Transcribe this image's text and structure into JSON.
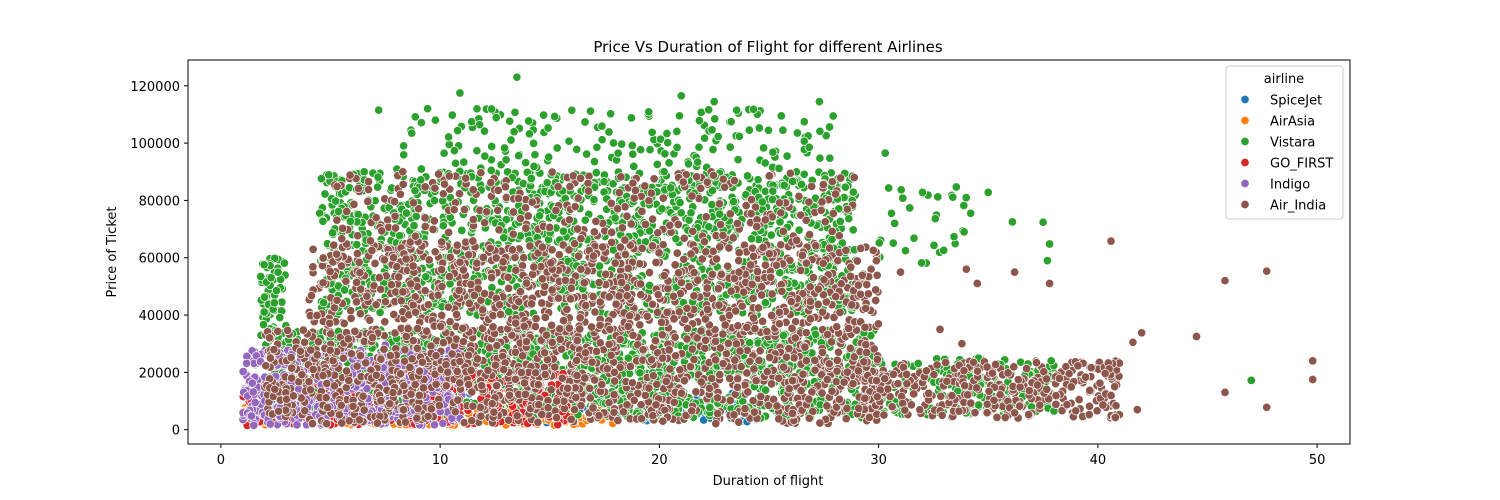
{
  "chart_data": {
    "type": "scatter",
    "title": "Price Vs Duration of Flight for different Airlines",
    "xlabel": "Duration of flight",
    "ylabel": "Price of Ticket",
    "xlim": [
      -1.5,
      51.5
    ],
    "ylim": [
      -5000,
      129000
    ],
    "xticks": [
      0,
      10,
      20,
      30,
      40,
      50
    ],
    "yticks": [
      0,
      20000,
      40000,
      60000,
      80000,
      100000,
      120000
    ],
    "grid": false,
    "legend": {
      "title": "airline",
      "placement": "top-right"
    },
    "series": [
      {
        "name": "SpiceJet",
        "color": "#1f77b4",
        "clusters": [
          {
            "x": [
              1.0,
              24.0
            ],
            "y": [
              1800,
              13000
            ],
            "n": 180
          },
          {
            "x": [
              2.0,
              16.0
            ],
            "y": [
              3000,
              20000
            ],
            "n": 60
          }
        ],
        "points": [
          [
            2.5,
            14000
          ],
          [
            3.5,
            12000
          ],
          [
            14.5,
            20500
          ],
          [
            24.0,
            2800
          ],
          [
            24.0,
            8000
          ],
          [
            4.2,
            18000
          ]
        ]
      },
      {
        "name": "AirAsia",
        "color": "#ff7f0e",
        "clusters": [
          {
            "x": [
              1.0,
              18.0
            ],
            "y": [
              1500,
              8000
            ],
            "n": 200
          },
          {
            "x": [
              2.0,
              14.0
            ],
            "y": [
              8000,
              20000
            ],
            "n": 50
          }
        ],
        "points": [
          [
            1.5,
            3800
          ],
          [
            2.5,
            12000
          ],
          [
            3.5,
            17500
          ],
          [
            9.5,
            1800
          ],
          [
            10.5,
            1800
          ],
          [
            11.5,
            24500
          ],
          [
            14.5,
            4500
          ]
        ]
      },
      {
        "name": "Vistara",
        "color": "#2ca02c",
        "clusters": [
          {
            "x": [
              4.5,
              29.0
            ],
            "y": [
              40000,
              90000
            ],
            "n": 1500
          },
          {
            "x": [
              1.8,
              3.0
            ],
            "y": [
              30000,
              60000
            ],
            "n": 70
          },
          {
            "x": [
              2.0,
              30.0
            ],
            "y": [
              4000,
              35000
            ],
            "n": 1400
          },
          {
            "x": [
              8.0,
              28.0
            ],
            "y": [
              90000,
              112000
            ],
            "n": 170
          },
          {
            "x": [
              30.0,
              38.0
            ],
            "y": [
              5000,
              25000
            ],
            "n": 200
          },
          {
            "x": [
              30.0,
              34.0
            ],
            "y": [
              55000,
              85000
            ],
            "n": 30
          }
        ],
        "points": [
          [
            13.5,
            123000
          ],
          [
            10.9,
            117500
          ],
          [
            21.0,
            116500
          ],
          [
            27.3,
            114500
          ],
          [
            7.2,
            111500
          ],
          [
            22.5,
            114500
          ],
          [
            34.2,
            75500
          ],
          [
            35.0,
            82800
          ],
          [
            36.1,
            72500
          ],
          [
            37.5,
            72400
          ],
          [
            37.8,
            64800
          ],
          [
            37.7,
            59000
          ],
          [
            47.0,
            17200
          ],
          [
            33.9,
            69000
          ],
          [
            32.0,
            82800
          ],
          [
            30.3,
            96500
          ],
          [
            38.0,
            6500
          ]
        ]
      },
      {
        "name": "GO_FIRST",
        "color": "#d62728",
        "clusters": [
          {
            "x": [
              1.0,
              16.0
            ],
            "y": [
              1500,
              20000
            ],
            "n": 300
          }
        ],
        "points": [
          [
            1.2,
            1500
          ],
          [
            4.5,
            23000
          ],
          [
            14.0,
            2200
          ],
          [
            12.5,
            2200
          ]
        ]
      },
      {
        "name": "Indigo",
        "color": "#9467bd",
        "clusters": [
          {
            "x": [
              1.0,
              11.0
            ],
            "y": [
              1500,
              28000
            ],
            "n": 500
          }
        ],
        "points": [
          [
            5.5,
            27500
          ],
          [
            7.5,
            29500
          ],
          [
            10.5,
            30500
          ],
          [
            11.0,
            22000
          ],
          [
            1.5,
            1500
          ]
        ]
      },
      {
        "name": "Air_India",
        "color": "#8c564b",
        "clusters": [
          {
            "x": [
              2.0,
              30.0
            ],
            "y": [
              2000,
              35000
            ],
            "n": 1200
          },
          {
            "x": [
              4.0,
              30.0
            ],
            "y": [
              35000,
              65000
            ],
            "n": 900
          },
          {
            "x": [
              5.0,
              29.0
            ],
            "y": [
              65000,
              90000
            ],
            "n": 250
          },
          {
            "x": [
              29.0,
              41.0
            ],
            "y": [
              4000,
              24000
            ],
            "n": 350
          }
        ],
        "points": [
          [
            40.6,
            65800
          ],
          [
            45.8,
            52000
          ],
          [
            47.7,
            55300
          ],
          [
            44.5,
            32500
          ],
          [
            42.0,
            33800
          ],
          [
            41.6,
            30500
          ],
          [
            45.8,
            13000
          ],
          [
            47.7,
            7800
          ],
          [
            49.8,
            17500
          ],
          [
            49.8,
            24000
          ],
          [
            41.8,
            7000
          ],
          [
            32.8,
            35000
          ],
          [
            33.8,
            30000
          ],
          [
            34.5,
            51000
          ],
          [
            36.2,
            55000
          ],
          [
            37.8,
            51000
          ],
          [
            34.0,
            56000
          ],
          [
            31.0,
            55000
          ]
        ]
      }
    ]
  }
}
